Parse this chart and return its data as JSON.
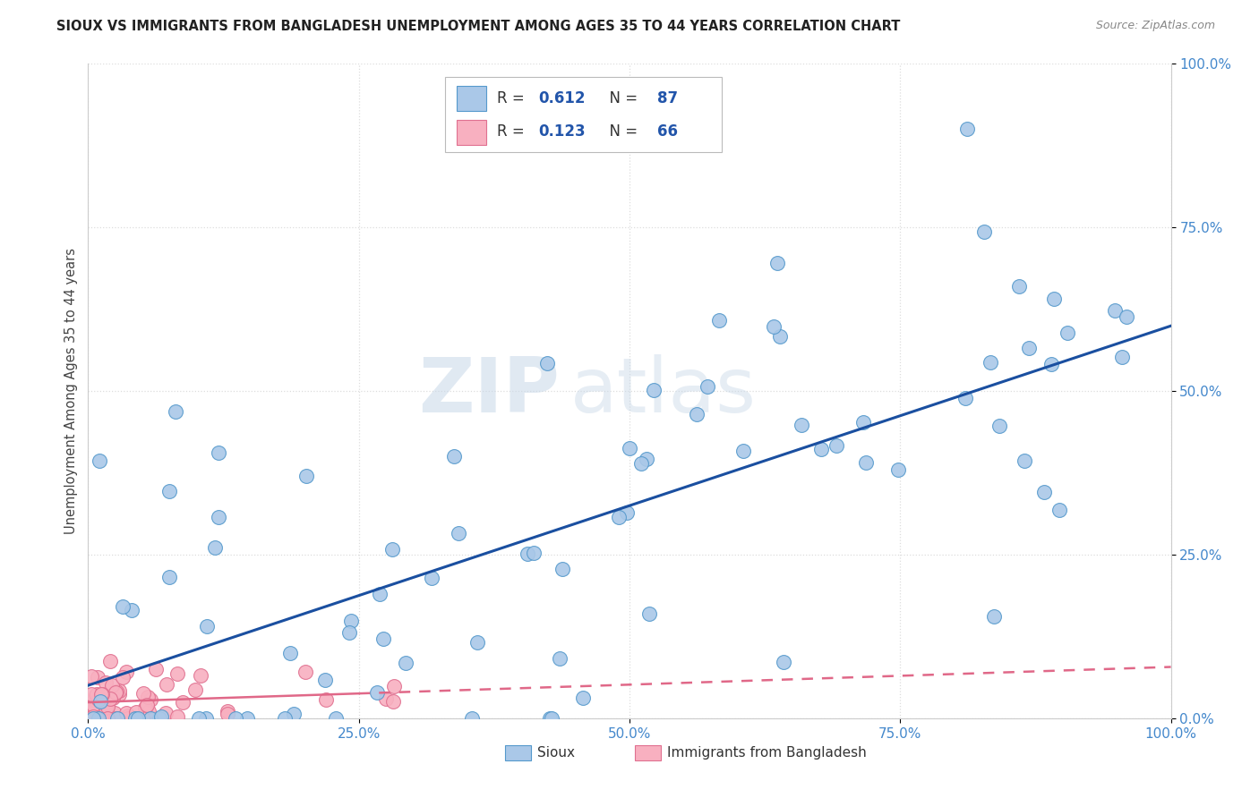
{
  "title": "SIOUX VS IMMIGRANTS FROM BANGLADESH UNEMPLOYMENT AMONG AGES 35 TO 44 YEARS CORRELATION CHART",
  "source": "Source: ZipAtlas.com",
  "ylabel": "Unemployment Among Ages 35 to 44 years",
  "xlim": [
    0.0,
    1.0
  ],
  "ylim": [
    0.0,
    1.0
  ],
  "xticks": [
    0.0,
    0.25,
    0.5,
    0.75,
    1.0
  ],
  "yticks": [
    0.0,
    0.25,
    0.5,
    0.75,
    1.0
  ],
  "xtick_labels": [
    "0.0%",
    "25.0%",
    "50.0%",
    "75.0%",
    "100.0%"
  ],
  "ytick_labels": [
    "0.0%",
    "25.0%",
    "50.0%",
    "75.0%",
    "100.0%"
  ],
  "sioux_color": "#aac8e8",
  "sioux_edge_color": "#5599cc",
  "bangladesh_color": "#f8b0c0",
  "bangladesh_edge_color": "#e07090",
  "sioux_R": 0.612,
  "sioux_N": 87,
  "bangladesh_R": 0.123,
  "bangladesh_N": 66,
  "trend_blue": "#1a4fa0",
  "trend_pink": "#e06888",
  "legend_text_color": "#2255aa",
  "watermark_zip_color": "#c8d8e8",
  "watermark_atlas_color": "#c8d8e8",
  "background_color": "#ffffff",
  "grid_color": "#dddddd",
  "tick_color": "#4488cc",
  "ylabel_color": "#444444",
  "title_color": "#222222",
  "source_color": "#888888"
}
